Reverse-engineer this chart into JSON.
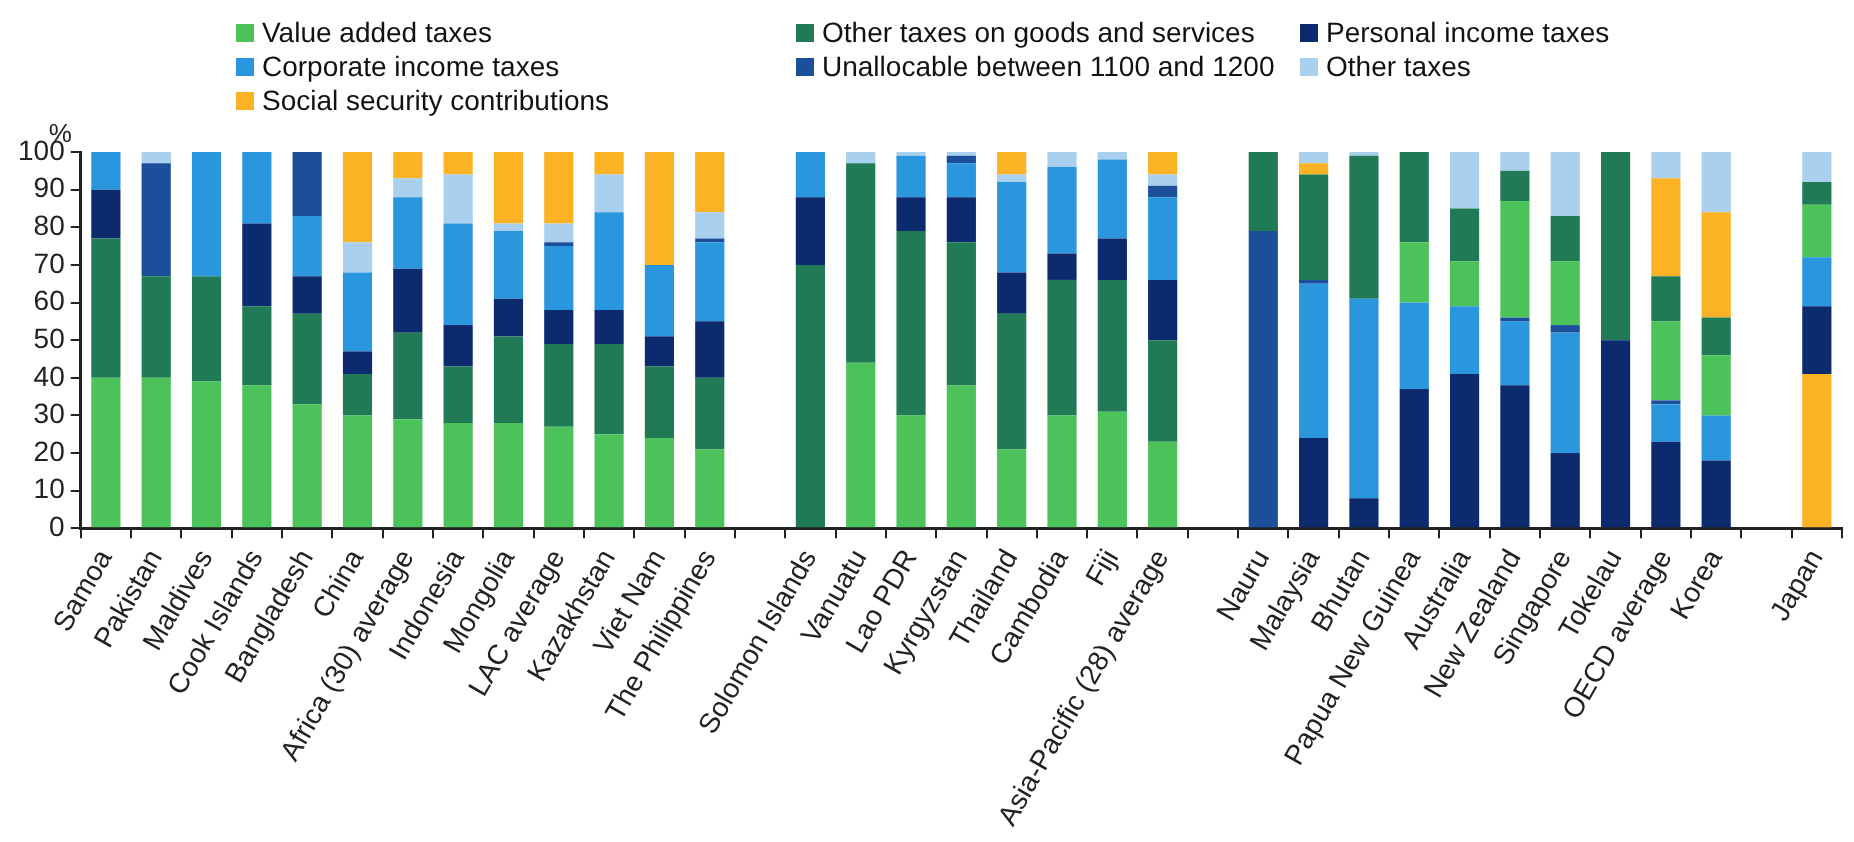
{
  "chart_data": {
    "type": "bar",
    "stacked": true,
    "ylabel": "%",
    "ylim": [
      0,
      100
    ],
    "yticks": [
      0,
      10,
      20,
      30,
      40,
      50,
      60,
      70,
      80,
      90,
      100
    ],
    "grid": false,
    "legend": "top",
    "categories": [
      "Samoa",
      "Pakistan",
      "Maldives",
      "Cook Islands",
      "Bangladesh",
      "China",
      "Africa (30) average",
      "Indonesia",
      "Mongolia",
      "LAC average",
      "Kazakhstan",
      "Viet Nam",
      "The Philippines",
      null,
      "Solomon Islands",
      "Vanuatu",
      "Lao PDR",
      "Kyrgyzstan",
      "Thailand",
      "Cambodia",
      "Fiji",
      "Asia-Pacific (28) average",
      null,
      "Nauru",
      "Malaysia",
      "Bhutan",
      "Papua New Guinea",
      "Australia",
      "New Zealand",
      "Singapore",
      "Tokelau",
      "OECD average",
      "Korea",
      null,
      "Japan"
    ],
    "series": [
      {
        "name": "Value added taxes",
        "color": "#4cc25a",
        "values": [
          40,
          40,
          39,
          38,
          33,
          30,
          29,
          28,
          28,
          27,
          25,
          24,
          21,
          null,
          null,
          44,
          30,
          38,
          21,
          30,
          31,
          23,
          null,
          null,
          null,
          null,
          null,
          null,
          null,
          null,
          null,
          null,
          null,
          null,
          null
        ]
      },
      {
        "name": "Other taxes on goods and services",
        "color": "#1f7a55",
        "values": [
          37,
          27,
          28,
          21,
          24,
          11,
          23,
          15,
          23,
          22,
          24,
          19,
          19,
          null,
          70,
          53,
          49,
          38,
          36,
          36,
          35,
          27,
          null,
          null,
          null,
          null,
          null,
          null,
          null,
          null,
          null,
          null,
          null,
          null,
          null
        ]
      },
      {
        "name": "Personal income taxes",
        "color": "#0c2a6e",
        "values": [
          13,
          null,
          null,
          22,
          10,
          6,
          17,
          11,
          10,
          9,
          9,
          8,
          15,
          null,
          18,
          null,
          9,
          12,
          11,
          7,
          11,
          16,
          null,
          null,
          null,
          null,
          null,
          null,
          null,
          null,
          null,
          null,
          null,
          null,
          null
        ]
      },
      {
        "name": "Corporate income taxes",
        "color": "#2a96de",
        "values": [
          10,
          null,
          33,
          19,
          16,
          21,
          19,
          27,
          18,
          17,
          26,
          19,
          21,
          null,
          12,
          null,
          11,
          9,
          24,
          23,
          21,
          22,
          null,
          null,
          null,
          null,
          null,
          null,
          null,
          null,
          null,
          null,
          null,
          null,
          null
        ]
      },
      {
        "name": "Unallocable between 1100 and 1200",
        "color": "#1b4f9a",
        "values": [
          null,
          30,
          null,
          null,
          17,
          null,
          null,
          null,
          null,
          1,
          null,
          null,
          1,
          null,
          null,
          null,
          null,
          2,
          null,
          null,
          null,
          3,
          null,
          null,
          null,
          null,
          null,
          null,
          null,
          null,
          null,
          null,
          null,
          null,
          null
        ]
      },
      {
        "name": "Other taxes",
        "color": "#a9d0ee",
        "values": [
          null,
          3,
          null,
          null,
          null,
          8,
          5,
          13,
          2,
          5,
          10,
          null,
          7,
          null,
          null,
          3,
          1,
          1,
          2,
          4,
          2,
          3,
          null,
          null,
          null,
          null,
          null,
          null,
          null,
          null,
          null,
          null,
          null,
          null,
          null
        ]
      },
      {
        "name": "Social security contributions",
        "color": "#fbb325",
        "values": [
          null,
          null,
          null,
          null,
          null,
          24,
          7,
          6,
          19,
          19,
          6,
          30,
          16,
          null,
          null,
          null,
          null,
          null,
          6,
          null,
          null,
          6,
          null,
          null,
          null,
          null,
          null,
          null,
          null,
          null,
          null,
          null,
          null,
          null,
          null
        ]
      },
      {
        "color": "#0c2a6e",
        "values": [
          null,
          null,
          null,
          null,
          null,
          null,
          null,
          null,
          null,
          null,
          null,
          null,
          null,
          null,
          null,
          null,
          null,
          null,
          null,
          null,
          null,
          null,
          null,
          null,
          24,
          8,
          37,
          41,
          38,
          20,
          50,
          23,
          18,
          null,
          null
        ]
      },
      {
        "color": "#2a96de",
        "values": [
          null,
          null,
          null,
          null,
          null,
          null,
          null,
          null,
          null,
          null,
          null,
          null,
          null,
          null,
          null,
          null,
          null,
          null,
          null,
          null,
          null,
          null,
          null,
          null,
          41,
          53,
          23,
          18,
          17,
          32,
          null,
          10,
          12,
          null,
          null
        ]
      },
      {
        "color": "#1b4f9a",
        "values": [
          null,
          null,
          null,
          null,
          null,
          null,
          null,
          null,
          null,
          null,
          null,
          null,
          null,
          null,
          null,
          null,
          null,
          null,
          null,
          null,
          null,
          null,
          null,
          79,
          1,
          null,
          null,
          null,
          1,
          2,
          null,
          1,
          null,
          null,
          null
        ]
      },
      {
        "color": "#4cc25a",
        "values": [
          null,
          null,
          null,
          null,
          null,
          null,
          null,
          null,
          null,
          null,
          null,
          null,
          null,
          null,
          null,
          null,
          null,
          null,
          null,
          null,
          null,
          null,
          null,
          null,
          null,
          null,
          16,
          12,
          31,
          17,
          null,
          21,
          16,
          null,
          null
        ]
      },
      {
        "color": "#1f7a55",
        "values": [
          null,
          null,
          null,
          null,
          null,
          null,
          null,
          null,
          null,
          null,
          null,
          null,
          null,
          null,
          null,
          null,
          null,
          null,
          null,
          null,
          null,
          null,
          null,
          21,
          28,
          38,
          24,
          14,
          8,
          12,
          50,
          12,
          10,
          null,
          null
        ]
      },
      {
        "color": "#fbb325",
        "values": [
          null,
          null,
          null,
          null,
          null,
          null,
          null,
          null,
          null,
          null,
          null,
          null,
          null,
          null,
          null,
          null,
          null,
          null,
          null,
          null,
          null,
          null,
          null,
          null,
          3,
          null,
          null,
          null,
          null,
          null,
          null,
          26,
          28,
          null,
          null
        ]
      },
      {
        "color": "#a9d0ee",
        "values": [
          null,
          null,
          null,
          null,
          null,
          null,
          null,
          null,
          null,
          null,
          null,
          null,
          null,
          null,
          null,
          null,
          null,
          null,
          null,
          null,
          null,
          null,
          null,
          null,
          3,
          1,
          null,
          15,
          5,
          17,
          null,
          7,
          16,
          null,
          null
        ]
      },
      {
        "color": "#fbb325",
        "values": [
          null,
          null,
          null,
          null,
          null,
          null,
          null,
          null,
          null,
          null,
          null,
          null,
          null,
          null,
          null,
          null,
          null,
          null,
          null,
          null,
          null,
          null,
          null,
          null,
          null,
          null,
          null,
          null,
          null,
          null,
          null,
          null,
          null,
          null,
          41
        ]
      },
      {
        "color": "#0c2a6e",
        "values": [
          null,
          null,
          null,
          null,
          null,
          null,
          null,
          null,
          null,
          null,
          null,
          null,
          null,
          null,
          null,
          null,
          null,
          null,
          null,
          null,
          null,
          null,
          null,
          null,
          null,
          null,
          null,
          null,
          null,
          null,
          null,
          null,
          null,
          null,
          18
        ]
      },
      {
        "color": "#2a96de",
        "values": [
          null,
          null,
          null,
          null,
          null,
          null,
          null,
          null,
          null,
          null,
          null,
          null,
          null,
          null,
          null,
          null,
          null,
          null,
          null,
          null,
          null,
          null,
          null,
          null,
          null,
          null,
          null,
          null,
          null,
          null,
          null,
          null,
          null,
          null,
          13
        ]
      },
      {
        "color": "#4cc25a",
        "values": [
          null,
          null,
          null,
          null,
          null,
          null,
          null,
          null,
          null,
          null,
          null,
          null,
          null,
          null,
          null,
          null,
          null,
          null,
          null,
          null,
          null,
          null,
          null,
          null,
          null,
          null,
          null,
          null,
          null,
          null,
          null,
          null,
          null,
          null,
          14
        ]
      },
      {
        "color": "#1f7a55",
        "values": [
          null,
          null,
          null,
          null,
          null,
          null,
          null,
          null,
          null,
          null,
          null,
          null,
          null,
          null,
          null,
          null,
          null,
          null,
          null,
          null,
          null,
          null,
          null,
          null,
          null,
          null,
          null,
          null,
          null,
          null,
          null,
          null,
          null,
          null,
          6
        ]
      },
      {
        "color": "#a9d0ee",
        "values": [
          null,
          null,
          null,
          null,
          null,
          null,
          null,
          null,
          null,
          null,
          null,
          null,
          null,
          null,
          null,
          null,
          null,
          null,
          null,
          null,
          null,
          null,
          null,
          null,
          null,
          null,
          null,
          null,
          null,
          null,
          null,
          null,
          null,
          null,
          8
        ]
      }
    ]
  }
}
